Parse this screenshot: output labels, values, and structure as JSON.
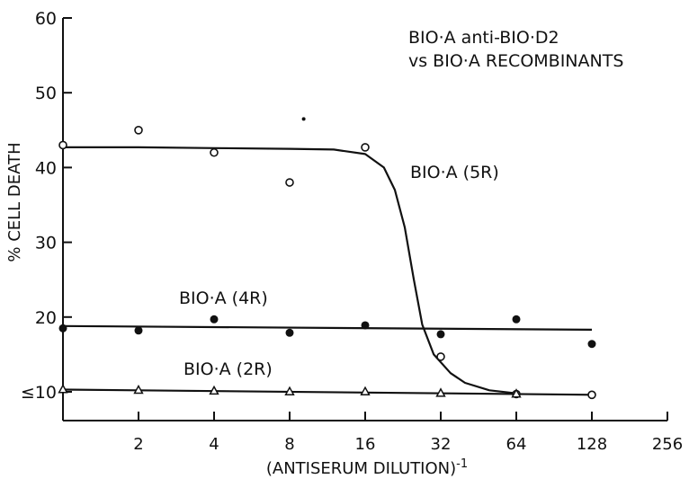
{
  "chart_data": {
    "type": "scatter",
    "title": "BIO·A anti-BIO·D2",
    "subtitle": "vs BIO·A RECOMBINANTS",
    "xlabel": "(ANTISERUM DILUTION)",
    "xlabel_superscript": "-1",
    "ylabel": "% CELL DEATH",
    "x_scale": "log2",
    "xlim": [
      1,
      256
    ],
    "ylim": [
      10,
      60
    ],
    "grid": false,
    "x_ticks": [
      2,
      4,
      8,
      16,
      32,
      64,
      128,
      256
    ],
    "x_tick_labels": [
      "2",
      "4",
      "8",
      "16",
      "32",
      "64",
      "128",
      "256"
    ],
    "y_ticks": [
      10,
      20,
      30,
      40,
      50,
      60
    ],
    "y_tick_labels": [
      "≤10",
      "20",
      "30",
      "40",
      "50",
      "60"
    ],
    "series": [
      {
        "name": "BIO·A (5R)",
        "marker": "open-circle",
        "x": [
          1,
          2,
          4,
          8,
          16,
          32,
          64,
          128
        ],
        "y": [
          43,
          45,
          42,
          38,
          42.7,
          14.7,
          9.7,
          9.6
        ],
        "curve": {
          "x": [
            1,
            2,
            4,
            8,
            12,
            16,
            19,
            21,
            23,
            25,
            27,
            30,
            35,
            40,
            50,
            64
          ],
          "y": [
            42.7,
            42.7,
            42.6,
            42.5,
            42.4,
            41.8,
            40,
            37,
            32,
            25,
            19,
            15,
            12.5,
            11.2,
            10.2,
            9.8
          ]
        }
      },
      {
        "name": "BIO·A (4R)",
        "marker": "filled-circle",
        "x": [
          1,
          2,
          4,
          8,
          16,
          32,
          64,
          128
        ],
        "y": [
          18.5,
          18.2,
          19.7,
          17.9,
          18.9,
          17.7,
          19.7,
          16.4
        ],
        "curve": {
          "x": [
            1,
            128
          ],
          "y": [
            18.8,
            18.3
          ]
        }
      },
      {
        "name": "BIO·A (2R)",
        "marker": "open-triangle",
        "x": [
          1,
          2,
          4,
          8,
          16,
          32,
          64
        ],
        "y": [
          10.3,
          10.2,
          10.1,
          10,
          10,
          9.8,
          9.7
        ],
        "curve": {
          "x": [
            1,
            128
          ],
          "y": [
            10.3,
            9.6
          ]
        }
      }
    ],
    "stray_dot": {
      "x": 9.1,
      "y": 46.5
    }
  }
}
